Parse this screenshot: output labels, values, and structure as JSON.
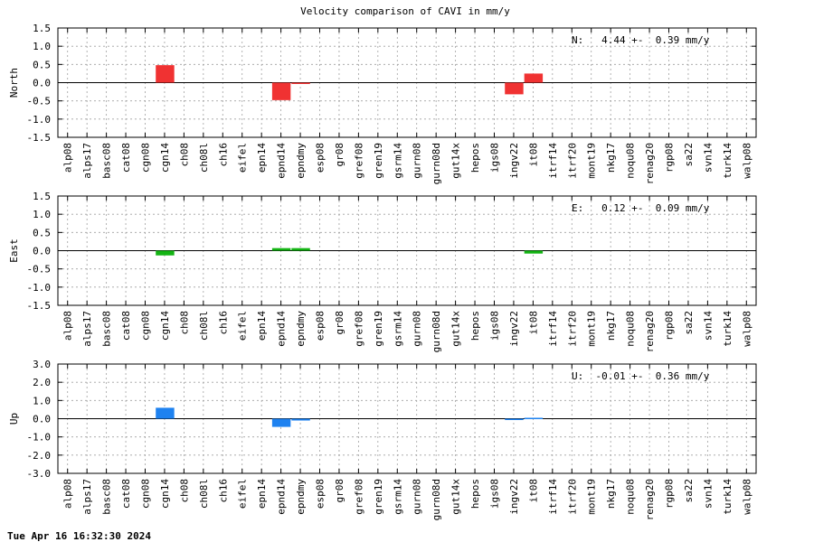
{
  "chart_data": {
    "type": "bar",
    "title": "Velocity comparison of CAVI in mm/y",
    "timestamp": "Tue Apr 16 16:32:30 2024",
    "categories": [
      "alp08",
      "alps17",
      "basc08",
      "cat08",
      "cgn08",
      "cgn14",
      "ch08",
      "ch08l",
      "ch16",
      "eifel",
      "epn14",
      "epnd14",
      "epndmy",
      "esp08",
      "gr08",
      "gref08",
      "gren19",
      "gsrm14",
      "gurn08",
      "gurn08d",
      "gut14x",
      "hepos",
      "igs08",
      "ingv22",
      "it08",
      "itrf14",
      "itrf20",
      "mont19",
      "nkg17",
      "noqu08",
      "renag20",
      "rgp08",
      "sa22",
      "svn14",
      "turk14",
      "walp08"
    ],
    "grid": true,
    "panels": [
      {
        "ylabel": "North",
        "ylim": [
          -1.5,
          1.5
        ],
        "yticks": [
          "1.5",
          "1.0",
          "0.5",
          "0.0",
          "-0.5",
          "-1.0",
          "-1.5"
        ],
        "color": "#f03232",
        "annotation": "N:   4.44 +-  0.39 mm/y",
        "values": [
          0,
          0,
          0,
          0,
          0,
          0.48,
          0,
          0,
          0,
          0,
          0,
          -0.48,
          -0.03,
          0,
          0,
          0,
          0,
          0,
          0,
          0,
          0,
          0,
          0,
          -0.32,
          0.25,
          0,
          0,
          0,
          0,
          0,
          0,
          0,
          0,
          0,
          0,
          0
        ]
      },
      {
        "ylabel": "East",
        "ylim": [
          -1.5,
          1.5
        ],
        "yticks": [
          "1.5",
          "1.0",
          "0.5",
          "0.0",
          "-0.5",
          "-1.0",
          "-1.5"
        ],
        "color": "#14b414",
        "annotation": "E:   0.12 +-  0.09 mm/y",
        "values": [
          0,
          0,
          0,
          0,
          0,
          -0.13,
          0,
          0,
          0,
          0,
          0,
          0.07,
          0.07,
          0,
          0,
          0,
          0,
          0,
          0,
          0,
          0,
          0,
          0,
          0,
          -0.08,
          0,
          0,
          0,
          0,
          0,
          0,
          0,
          0,
          0,
          0,
          0
        ]
      },
      {
        "ylabel": "Up",
        "ylim": [
          -3.0,
          3.0
        ],
        "yticks": [
          "3.0",
          "2.0",
          "1.0",
          "0.0",
          "-1.0",
          "-2.0",
          "-3.0"
        ],
        "color": "#1e82f0",
        "annotation": "U:  -0.01 +-  0.36 mm/y",
        "values": [
          0,
          0,
          0,
          0,
          0,
          0.6,
          0,
          0,
          0,
          0,
          0,
          -0.45,
          -0.1,
          0,
          0,
          0,
          0,
          0,
          0,
          0,
          0,
          0,
          0,
          -0.06,
          0.05,
          0,
          0,
          0,
          0,
          0,
          0,
          0,
          0,
          0,
          0,
          0
        ]
      }
    ]
  }
}
